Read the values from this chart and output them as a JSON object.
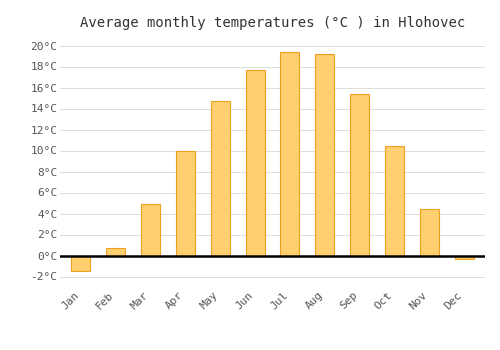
{
  "title": "Average monthly temperatures (°C ) in Hlohovec",
  "months": [
    "Jan",
    "Feb",
    "Mar",
    "Apr",
    "May",
    "Jun",
    "Jul",
    "Aug",
    "Sep",
    "Oct",
    "Nov",
    "Dec"
  ],
  "values": [
    -1.5,
    0.7,
    4.9,
    10.0,
    14.7,
    17.7,
    19.4,
    19.2,
    15.4,
    10.4,
    4.4,
    -0.3
  ],
  "bar_color_center": "#FFD070",
  "bar_color_edge": "#F0A020",
  "background_color": "#FFFFFF",
  "grid_color": "#DDDDDD",
  "ylim": [
    -3,
    21
  ],
  "yticks": [
    -2,
    0,
    2,
    4,
    6,
    8,
    10,
    12,
    14,
    16,
    18,
    20
  ],
  "title_fontsize": 10,
  "tick_fontsize": 8,
  "font_family": "monospace"
}
